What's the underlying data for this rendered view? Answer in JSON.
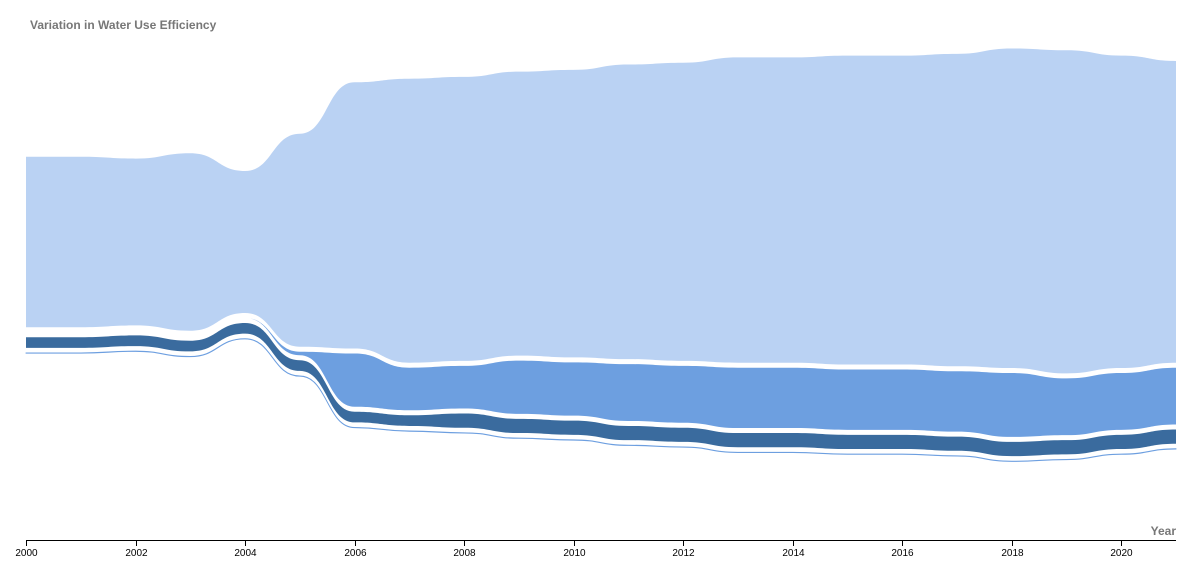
{
  "chart_data": {
    "type": "area",
    "title": "Variation in Water Use Efficiency",
    "xlabel": "Year",
    "ylabel": "",
    "x": [
      2000,
      2001,
      2002,
      2003,
      2004,
      2005,
      2006,
      2007,
      2008,
      2009,
      2010,
      2011,
      2012,
      2013,
      2014,
      2015,
      2016,
      2017,
      2018,
      2019,
      2020,
      2021
    ],
    "xlim": [
      2000,
      2021
    ],
    "x_ticks": [
      "2000",
      "2002",
      "2004",
      "2006",
      "2008",
      "2010",
      "2012",
      "2014",
      "2016",
      "2018",
      "2020"
    ],
    "ylim": [
      0,
      130
    ],
    "grid": false,
    "legend": "none",
    "series": [
      {
        "values": [
          48,
          48,
          47,
          50,
          40,
          60,
          75,
          80,
          80,
          80,
          81,
          83,
          84,
          86,
          86,
          87,
          87,
          88,
          90,
          91,
          88,
          85
        ],
        "color": "#bad2f3"
      },
      {
        "values": [
          0,
          0,
          0,
          0,
          0,
          1,
          15,
          12,
          12,
          15,
          15,
          16,
          16,
          17,
          17,
          17,
          17,
          17,
          18,
          16,
          16,
          16
        ],
        "color": "#6d9fe0"
      },
      {
        "values": [
          3,
          3,
          3,
          3,
          3,
          3,
          3,
          3,
          4,
          4,
          4,
          4,
          4,
          4,
          4,
          4,
          4,
          4,
          4,
          4,
          4,
          4
        ],
        "color": "#3a6b9e"
      },
      {
        "values": [
          0.1,
          0.1,
          0.1,
          0.1,
          0.1,
          0.1,
          0.1,
          0.1,
          0.1,
          0.1,
          0.1,
          0.1,
          0.1,
          0.1,
          0.1,
          0.1,
          0.1,
          0.1,
          0.1,
          0.1,
          0.1,
          0.1
        ],
        "color": "#6d9fe0"
      }
    ]
  }
}
